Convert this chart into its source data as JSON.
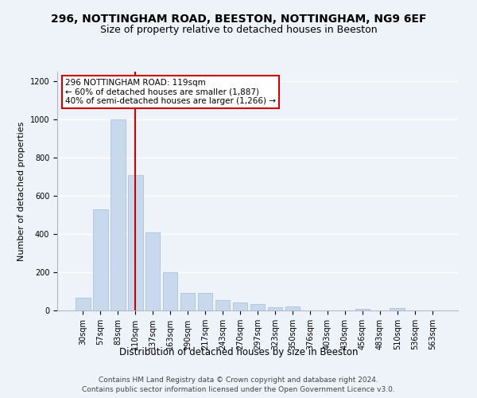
{
  "title1": "296, NOTTINGHAM ROAD, BEESTON, NOTTINGHAM, NG9 6EF",
  "title2": "Size of property relative to detached houses in Beeston",
  "xlabel": "Distribution of detached houses by size in Beeston",
  "ylabel": "Number of detached properties",
  "categories": [
    "30sqm",
    "57sqm",
    "83sqm",
    "110sqm",
    "137sqm",
    "163sqm",
    "190sqm",
    "217sqm",
    "243sqm",
    "270sqm",
    "297sqm",
    "323sqm",
    "350sqm",
    "376sqm",
    "403sqm",
    "430sqm",
    "456sqm",
    "483sqm",
    "510sqm",
    "536sqm",
    "563sqm"
  ],
  "values": [
    65,
    530,
    1000,
    710,
    410,
    200,
    90,
    90,
    55,
    40,
    32,
    18,
    20,
    0,
    0,
    0,
    10,
    0,
    12,
    0,
    0
  ],
  "bar_color": "#c8d9ee",
  "bar_edge_color": "#a0bcd8",
  "vline_color": "#cc0000",
  "annotation_text": "296 NOTTINGHAM ROAD: 119sqm\n← 60% of detached houses are smaller (1,887)\n40% of semi-detached houses are larger (1,266) →",
  "annotation_box_color": "#ffffff",
  "annotation_box_edge": "#cc0000",
  "ylim": [
    0,
    1250
  ],
  "yticks": [
    0,
    200,
    400,
    600,
    800,
    1000,
    1200
  ],
  "footer1": "Contains HM Land Registry data © Crown copyright and database right 2024.",
  "footer2": "Contains public sector information licensed under the Open Government Licence v3.0.",
  "bg_color": "#eef2f9",
  "plot_bg_color": "#eef2f9",
  "grid_color": "#ffffff",
  "title1_fontsize": 10,
  "title2_fontsize": 9,
  "xlabel_fontsize": 8.5,
  "ylabel_fontsize": 8,
  "tick_fontsize": 7,
  "footer_fontsize": 6.5,
  "annot_fontsize": 7.5
}
